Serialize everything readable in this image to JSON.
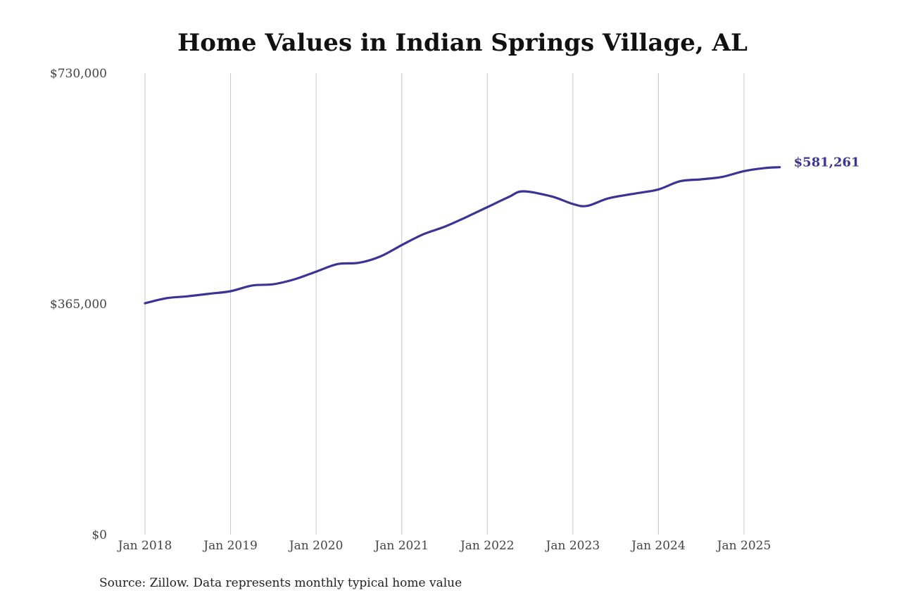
{
  "chart_data": {
    "type": "line",
    "title": "Home Values in Indian Springs Village, AL",
    "source": "Source: Zillow. Data represents monthly typical home value",
    "ylim": [
      0,
      730000
    ],
    "y_ticks": [
      {
        "value": 0,
        "label": "$0"
      },
      {
        "value": 365000,
        "label": "$365,000"
      },
      {
        "value": 730000,
        "label": "$730,000"
      }
    ],
    "x_ticks": [
      {
        "value": "2018-01",
        "label": "Jan 2018"
      },
      {
        "value": "2019-01",
        "label": "Jan 2019"
      },
      {
        "value": "2020-01",
        "label": "Jan 2020"
      },
      {
        "value": "2021-01",
        "label": "Jan 2021"
      },
      {
        "value": "2022-01",
        "label": "Jan 2022"
      },
      {
        "value": "2023-01",
        "label": "Jan 2023"
      },
      {
        "value": "2024-01",
        "label": "Jan 2024"
      },
      {
        "value": "2025-01",
        "label": "Jan 2025"
      }
    ],
    "xlim": [
      "2018-01",
      "2025-06"
    ],
    "grid": "vertical",
    "series": [
      {
        "color": "#3b3494",
        "end_label": "$581,261",
        "points": [
          {
            "x": "2018-01",
            "y": 366000
          },
          {
            "x": "2018-04",
            "y": 374000
          },
          {
            "x": "2018-07",
            "y": 377000
          },
          {
            "x": "2018-10",
            "y": 381000
          },
          {
            "x": "2019-01",
            "y": 385000
          },
          {
            "x": "2019-04",
            "y": 394000
          },
          {
            "x": "2019-07",
            "y": 396000
          },
          {
            "x": "2019-10",
            "y": 404000
          },
          {
            "x": "2020-01",
            "y": 416000
          },
          {
            "x": "2020-04",
            "y": 428000
          },
          {
            "x": "2020-07",
            "y": 430000
          },
          {
            "x": "2020-10",
            "y": 440000
          },
          {
            "x": "2021-01",
            "y": 458000
          },
          {
            "x": "2021-04",
            "y": 475000
          },
          {
            "x": "2021-07",
            "y": 487000
          },
          {
            "x": "2021-10",
            "y": 502000
          },
          {
            "x": "2022-01",
            "y": 518000
          },
          {
            "x": "2022-04",
            "y": 534000
          },
          {
            "x": "2022-06",
            "y": 543000
          },
          {
            "x": "2022-10",
            "y": 535000
          },
          {
            "x": "2023-01",
            "y": 523000
          },
          {
            "x": "2023-03",
            "y": 520000
          },
          {
            "x": "2023-06",
            "y": 532000
          },
          {
            "x": "2023-10",
            "y": 540000
          },
          {
            "x": "2024-01",
            "y": 546000
          },
          {
            "x": "2024-04",
            "y": 559000
          },
          {
            "x": "2024-07",
            "y": 562000
          },
          {
            "x": "2024-10",
            "y": 566000
          },
          {
            "x": "2025-01",
            "y": 575000
          },
          {
            "x": "2025-04",
            "y": 580000
          },
          {
            "x": "2025-06",
            "y": 581261
          }
        ]
      }
    ]
  }
}
